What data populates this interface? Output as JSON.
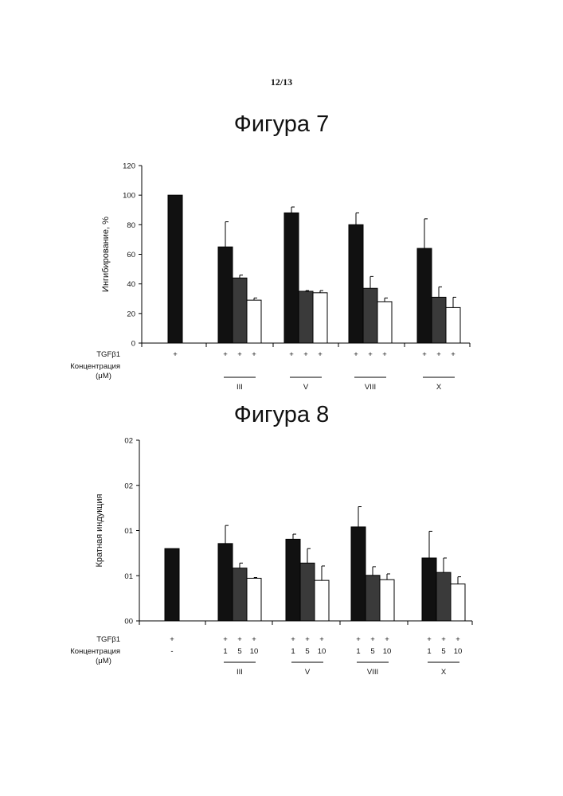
{
  "page_number": "12/13",
  "colors": {
    "dark": "#111111",
    "medium": "#3a3a3a",
    "light": "#ffffff",
    "axis": "#000000"
  },
  "chart_data": [
    {
      "title": "Фигура 7",
      "type": "bar",
      "ylabel": "Ингибирование, %",
      "ylim": [
        0,
        120
      ],
      "yticks": [
        "0",
        "20",
        "40",
        "60",
        "80",
        "100",
        "120"
      ],
      "tgf_label": "TGFβ1",
      "conc_label_1": "Концентрация",
      "conc_label_2": "(μM)",
      "control": {
        "value": 100,
        "error": 0,
        "tgf": "+",
        "conc": ""
      },
      "groups": [
        {
          "name": "III",
          "values": [
            65,
            44,
            29
          ],
          "errors": [
            17,
            2,
            1.5
          ],
          "tgf": [
            "+",
            "+",
            "+"
          ],
          "conc": [
            "",
            "",
            ""
          ]
        },
        {
          "name": "V",
          "values": [
            88,
            35,
            34
          ],
          "errors": [
            4,
            0.5,
            1.5
          ],
          "tgf": [
            "+",
            "+",
            "+"
          ],
          "conc": [
            "",
            "",
            ""
          ]
        },
        {
          "name": "VIII",
          "values": [
            80,
            37,
            28
          ],
          "errors": [
            8,
            8,
            2.5
          ],
          "tgf": [
            "+",
            "+",
            "+"
          ],
          "conc": [
            "",
            "",
            ""
          ]
        },
        {
          "name": "X",
          "values": [
            64,
            31,
            24
          ],
          "errors": [
            20,
            7,
            7
          ],
          "tgf": [
            "+",
            "+",
            "+"
          ],
          "conc": [
            "",
            "",
            ""
          ]
        }
      ]
    },
    {
      "title": "Фигура 8",
      "type": "bar",
      "ylabel": "Кратная индукция",
      "ylim": [
        0,
        2.5
      ],
      "yticks": [
        "00",
        "01",
        "01",
        "02",
        "02"
      ],
      "tgf_label": "TGFβ1",
      "conc_label_1": "Концентрация",
      "conc_label_2": "(μM)",
      "control": {
        "value": 1.0,
        "error": 0,
        "tgf": "+",
        "conc": "-"
      },
      "groups": [
        {
          "name": "III",
          "values": [
            1.07,
            0.73,
            0.59
          ],
          "errors": [
            0.25,
            0.07,
            0.01
          ],
          "tgf": [
            "+",
            "+",
            "+"
          ],
          "conc": [
            "1",
            "5",
            "10"
          ]
        },
        {
          "name": "V",
          "values": [
            1.13,
            0.8,
            0.56
          ],
          "errors": [
            0.07,
            0.2,
            0.2
          ],
          "tgf": [
            "+",
            "+",
            "+"
          ],
          "conc": [
            "1",
            "5",
            "10"
          ]
        },
        {
          "name": "VIII",
          "values": [
            1.3,
            0.63,
            0.57
          ],
          "errors": [
            0.28,
            0.12,
            0.08
          ],
          "tgf": [
            "+",
            "+",
            "+"
          ],
          "conc": [
            "1",
            "5",
            "10"
          ]
        },
        {
          "name": "X",
          "values": [
            0.87,
            0.67,
            0.51
          ],
          "errors": [
            0.37,
            0.2,
            0.1
          ],
          "tgf": [
            "+",
            "+",
            "+"
          ],
          "conc": [
            "1",
            "5",
            "10"
          ]
        }
      ]
    }
  ]
}
